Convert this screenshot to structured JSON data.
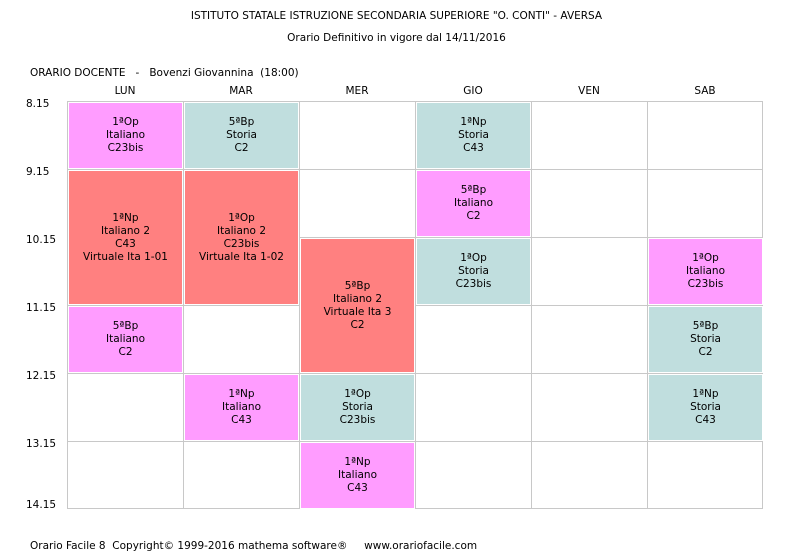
{
  "header": {
    "institute": "ISTITUTO STATALE ISTRUZIONE SECONDARIA SUPERIORE \"O. CONTI\" - AVERSA",
    "subtitle": "Orario Definitivo in vigore dal 14/11/2016",
    "teacher_line": "ORARIO DOCENTE   -   Bovenzi Giovannina  (18:00)"
  },
  "days": [
    "LUN",
    "MAR",
    "MER",
    "GIO",
    "VEN",
    "SAB"
  ],
  "times": [
    "8.15",
    "9.15",
    "10.15",
    "11.15",
    "12.15",
    "13.15",
    "14.15"
  ],
  "colors": {
    "italiano": "#ff9cff",
    "storia": "#c0dede",
    "italiano2": "#ff8080"
  },
  "lessons": [
    {
      "day": 0,
      "start": 0,
      "span": 1,
      "kind": "italiano",
      "lines": [
        "1ªOp",
        "Italiano",
        "C23bis"
      ]
    },
    {
      "day": 0,
      "start": 1,
      "span": 2,
      "kind": "italiano2",
      "lines": [
        "1ªNp",
        "Italiano 2",
        "C43",
        "Virtuale Ita 1-01"
      ]
    },
    {
      "day": 0,
      "start": 3,
      "span": 1,
      "kind": "italiano",
      "lines": [
        "5ªBp",
        "Italiano",
        "C2"
      ]
    },
    {
      "day": 1,
      "start": 0,
      "span": 1,
      "kind": "storia",
      "lines": [
        "5ªBp",
        "Storia",
        "C2"
      ]
    },
    {
      "day": 1,
      "start": 1,
      "span": 2,
      "kind": "italiano2",
      "lines": [
        "1ªOp",
        "Italiano 2",
        "C23bis",
        "Virtuale Ita 1-02"
      ]
    },
    {
      "day": 1,
      "start": 4,
      "span": 1,
      "kind": "italiano",
      "lines": [
        "1ªNp",
        "Italiano",
        "C43"
      ]
    },
    {
      "day": 2,
      "start": 2,
      "span": 2,
      "kind": "italiano2",
      "lines": [
        "5ªBp",
        "Italiano 2",
        "Virtuale Ita 3",
        "C2"
      ]
    },
    {
      "day": 2,
      "start": 4,
      "span": 1,
      "kind": "storia",
      "lines": [
        "1ªOp",
        "Storia",
        "C23bis"
      ]
    },
    {
      "day": 2,
      "start": 5,
      "span": 1,
      "kind": "italiano",
      "lines": [
        "1ªNp",
        "Italiano",
        "C43"
      ]
    },
    {
      "day": 3,
      "start": 0,
      "span": 1,
      "kind": "storia",
      "lines": [
        "1ªNp",
        "Storia",
        "C43"
      ]
    },
    {
      "day": 3,
      "start": 1,
      "span": 1,
      "kind": "italiano",
      "lines": [
        "5ªBp",
        "Italiano",
        "C2"
      ]
    },
    {
      "day": 3,
      "start": 2,
      "span": 1,
      "kind": "storia",
      "lines": [
        "1ªOp",
        "Storia",
        "C23bis"
      ]
    },
    {
      "day": 5,
      "start": 2,
      "span": 1,
      "kind": "italiano",
      "lines": [
        "1ªOp",
        "Italiano",
        "C23bis"
      ]
    },
    {
      "day": 5,
      "start": 3,
      "span": 1,
      "kind": "storia",
      "lines": [
        "5ªBp",
        "Storia",
        "C2"
      ]
    },
    {
      "day": 5,
      "start": 4,
      "span": 1,
      "kind": "storia",
      "lines": [
        "1ªNp",
        "Storia",
        "C43"
      ]
    }
  ],
  "footer": {
    "text": "Orario Facile 8  Copyright© 1999-2016 mathema software®     www.orariofacile.com"
  }
}
